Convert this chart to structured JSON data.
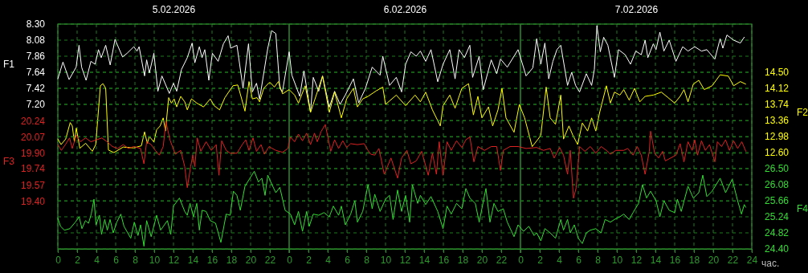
{
  "chart_data": [
    {
      "type": "line",
      "grid": true,
      "xlabel": "час.",
      "ylabel": "F1",
      "y2label": "F2",
      "xlim": [
        "2026-02-05T00:00",
        "2026-02-08T00:00"
      ],
      "xticks": [
        {
          "value": "2026-02-05T00:00",
          "label": "0"
        },
        {
          "value": "2026-02-05T02:00",
          "label": "2"
        },
        {
          "value": "2026-02-05T04:00",
          "label": "4"
        },
        {
          "value": "2026-02-05T06:00",
          "label": "6"
        },
        {
          "value": "2026-02-05T08:00",
          "label": "8"
        },
        {
          "value": "2026-02-05T10:00",
          "label": "10"
        },
        {
          "value": "2026-02-05T12:00",
          "label": "12"
        },
        {
          "value": "2026-02-05T14:00",
          "label": "14"
        },
        {
          "value": "2026-02-05T16:00",
          "label": "16"
        },
        {
          "value": "2026-02-05T18:00",
          "label": "18"
        },
        {
          "value": "2026-02-05T20:00",
          "label": "20"
        },
        {
          "value": "2026-02-05T22:00",
          "label": "22"
        },
        {
          "value": "2026-02-06T00:00",
          "label": "0"
        },
        {
          "value": "2026-02-06T02:00",
          "label": "2"
        },
        {
          "value": "2026-02-06T04:00",
          "label": "4"
        },
        {
          "value": "2026-02-06T06:00",
          "label": "6"
        },
        {
          "value": "2026-02-06T08:00",
          "label": "8"
        },
        {
          "value": "2026-02-06T10:00",
          "label": "10"
        },
        {
          "value": "2026-02-06T12:00",
          "label": "12"
        },
        {
          "value": "2026-02-06T14:00",
          "label": "14"
        },
        {
          "value": "2026-02-06T16:00",
          "label": "16"
        },
        {
          "value": "2026-02-06T18:00",
          "label": "18"
        },
        {
          "value": "2026-02-06T20:00",
          "label": "20"
        },
        {
          "value": "2026-02-06T22:00",
          "label": "22"
        },
        {
          "value": "2026-02-07T00:00",
          "label": "0"
        },
        {
          "value": "2026-02-07T02:00",
          "label": "2"
        },
        {
          "value": "2026-02-07T04:00",
          "label": "4"
        },
        {
          "value": "2026-02-07T06:00",
          "label": "6"
        },
        {
          "value": "2026-02-07T08:00",
          "label": "8"
        },
        {
          "value": "2026-02-07T10:00",
          "label": "10"
        },
        {
          "value": "2026-02-07T12:00",
          "label": "12"
        },
        {
          "value": "2026-02-07T14:00",
          "label": "14"
        },
        {
          "value": "2026-02-07T16:00",
          "label": "16"
        },
        {
          "value": "2026-02-07T18:00",
          "label": "18"
        },
        {
          "value": "2026-02-07T20:00",
          "label": "20"
        },
        {
          "value": "2026-02-07T22:00",
          "label": "22"
        },
        {
          "value": "2026-02-08T00:00",
          "label": "24"
        }
      ],
      "x2lim": [
        "2026-02-05T00:00",
        "2026-02-08T00:00"
      ],
      "x2ticks": [
        {
          "value": "2026-02-05T12:00",
          "label": "5.02.2026"
        },
        {
          "value": "2026-02-06T12:00",
          "label": "6.02.2026"
        },
        {
          "value": "2026-02-07T12:00",
          "label": "7.02.2026"
        }
      ],
      "ylim": [
        5.22,
        8.3
      ],
      "yticks": [
        {
          "value": 8.3,
          "label": "8.30"
        },
        8.08,
        7.86,
        7.64,
        7.42,
        {
          "value": 7.2,
          "label": "7.20"
        }
      ],
      "y2lim": [
        10.32,
        15.64
      ],
      "y2ticks": [
        {
          "value": 14.5,
          "label": "14.50"
        },
        14.12,
        13.74,
        13.36,
        12.98,
        {
          "value": 12.6,
          "label": "12.60"
        }
      ],
      "series": [
        {
          "color": "#ffffff",
          "x": [
            "2026-02-05T00:00",
            "2026-02-05T00:32",
            "2026-02-05T01:10",
            "2026-02-05T01:54",
            "2026-02-05T02:12",
            "2026-02-05T02:28",
            "2026-02-05T02:56",
            "2026-02-05T03:26",
            "2026-02-05T03:52",
            "2026-02-05T04:13",
            "2026-02-05T04:30",
            "2026-02-05T04:58",
            "2026-02-05T05:26",
            "2026-02-05T05:56",
            "2026-02-05T06:43",
            "2026-02-05T07:11",
            "2026-02-05T07:53",
            "2026-02-05T08:13",
            "2026-02-05T08:26",
            "2026-02-05T09:00",
            "2026-02-05T09:13",
            "2026-02-05T09:30",
            "2026-02-05T09:58",
            "2026-02-05T10:23",
            "2026-02-05T10:48",
            "2026-02-05T11:34",
            "2026-02-05T12:00",
            "2026-02-05T12:20",
            "2026-02-05T12:50",
            "2026-02-05T13:26",
            "2026-02-05T13:56",
            "2026-02-05T14:13",
            "2026-02-05T14:41",
            "2026-02-05T14:58",
            "2026-02-05T15:15",
            "2026-02-05T15:40",
            "2026-02-05T16:02",
            "2026-02-05T16:38",
            "2026-02-05T17:11",
            "2026-02-05T17:40",
            "2026-02-05T17:56",
            "2026-02-05T18:35",
            "2026-02-05T19:13",
            "2026-02-05T19:47",
            "2026-02-05T20:11",
            "2026-02-05T20:37",
            "2026-02-05T20:56",
            "2026-02-05T21:47",
            "2026-02-05T22:11",
            "2026-02-05T22:37",
            "2026-02-05T23:02",
            "2026-02-05T23:18",
            "2026-02-06T00:00",
            "2026-02-06T00:17",
            "2026-02-06T01:06",
            "2026-02-06T01:32",
            "2026-02-06T02:13",
            "2026-02-06T02:30",
            "2026-02-06T03:04",
            "2026-02-06T03:28",
            "2026-02-06T04:10",
            "2026-02-06T04:43",
            "2026-02-06T05:17",
            "2026-02-06T05:50",
            "2026-02-06T06:40",
            "2026-02-06T07:13",
            "2026-02-06T07:55",
            "2026-02-06T08:37",
            "2026-02-06T09:26",
            "2026-02-06T09:43",
            "2026-02-06T10:25",
            "2026-02-06T11:07",
            "2026-02-06T11:40",
            "2026-02-06T12:05",
            "2026-02-06T12:38",
            "2026-02-06T13:11",
            "2026-02-06T13:37",
            "2026-02-06T14:10",
            "2026-02-06T14:43",
            "2026-02-06T15:25",
            "2026-02-06T15:58",
            "2026-02-06T16:40",
            "2026-02-06T17:13",
            "2026-02-06T17:38",
            "2026-02-06T18:11",
            "2026-02-06T18:45",
            "2026-02-06T19:02",
            "2026-02-06T19:43",
            "2026-02-06T20:08",
            "2026-02-06T20:58",
            "2026-02-06T21:32",
            "2026-02-06T21:56",
            "2026-02-06T22:38",
            "2026-02-06T23:45",
            "2026-02-07T00:35",
            "2026-02-07T01:17",
            "2026-02-07T01:41",
            "2026-02-07T02:07",
            "2026-02-07T02:32",
            "2026-02-07T02:56",
            "2026-02-07T03:22",
            "2026-02-07T03:47",
            "2026-02-07T04:11",
            "2026-02-07T04:53",
            "2026-02-07T05:19",
            "2026-02-07T05:43",
            "2026-02-07T06:08",
            "2026-02-07T06:50",
            "2026-02-07T07:23",
            "2026-02-07T07:40",
            "2026-02-07T07:56",
            "2026-02-07T08:17",
            "2026-02-07T08:38",
            "2026-02-07T09:04",
            "2026-02-07T09:45",
            "2026-02-07T10:10",
            "2026-02-07T10:52",
            "2026-02-07T11:25",
            "2026-02-07T11:58",
            "2026-02-07T12:32",
            "2026-02-07T12:56",
            "2026-02-07T13:13",
            "2026-02-07T13:47",
            "2026-02-07T14:04",
            "2026-02-07T14:28",
            "2026-02-07T14:53",
            "2026-02-07T15:26",
            "2026-02-07T16:08",
            "2026-02-07T16:50",
            "2026-02-07T17:23",
            "2026-02-07T18:05",
            "2026-02-07T18:47",
            "2026-02-07T19:20",
            "2026-02-07T20:10",
            "2026-02-07T20:43",
            "2026-02-07T21:00",
            "2026-02-07T21:25",
            "2026-02-07T22:07",
            "2026-02-07T22:49",
            "2026-02-07T23:13"
          ],
          "values": [
            7.55,
            7.78,
            7.54,
            7.71,
            8.01,
            7.71,
            7.53,
            7.79,
            7.75,
            7.95,
            7.84,
            8.01,
            7.74,
            8.09,
            7.85,
            7.9,
            7.99,
            7.93,
            7.99,
            7.59,
            7.81,
            7.63,
            7.9,
            7.38,
            7.59,
            7.35,
            7.49,
            7.38,
            7.68,
            7.84,
            8.04,
            7.77,
            7.99,
            7.84,
            7.95,
            7.53,
            7.9,
            7.79,
            8.03,
            8.14,
            7.97,
            8.01,
            7.42,
            8.03,
            7.37,
            7.49,
            7.27,
            7.97,
            8.21,
            8.17,
            7.42,
            7.37,
            7.92,
            7.6,
            7.31,
            7.66,
            7.09,
            7.57,
            7.38,
            7.59,
            7.16,
            7.38,
            7.2,
            7.33,
            7.55,
            7.22,
            7.42,
            7.71,
            7.6,
            7.86,
            7.46,
            7.57,
            7.37,
            7.75,
            7.92,
            7.86,
            7.93,
            7.79,
            7.95,
            7.51,
            7.75,
            7.95,
            7.55,
            7.95,
            7.84,
            8.01,
            7.57,
            7.86,
            7.4,
            7.81,
            7.62,
            7.82,
            7.71,
            7.95,
            7.59,
            7.7,
            8.1,
            7.75,
            8.04,
            7.55,
            7.79,
            7.95,
            8.01,
            7.46,
            7.64,
            7.46,
            7.37,
            7.62,
            7.46,
            7.68,
            8.28,
            7.92,
            8.12,
            8.01,
            7.57,
            7.95,
            7.88,
            7.75,
            7.93,
            7.88,
            8.08,
            7.84,
            8.03,
            7.95,
            8.19,
            7.93,
            8.08,
            7.79,
            7.99,
            7.93,
            7.99,
            7.93,
            7.95,
            7.82,
            8.1,
            7.97,
            8.15,
            8.08,
            8.04,
            8.12
          ]
        },
        {
          "color": "#ffff00",
          "axis": "y2",
          "x": [
            "2026-02-05T00:00",
            "2026-02-05T00:20",
            "2026-02-05T00:49",
            "2026-02-05T01:17",
            "2026-02-05T01:30",
            "2026-02-05T01:43",
            "2026-02-05T01:55",
            "2026-02-05T02:17",
            "2026-02-05T02:53",
            "2026-02-05T03:35",
            "2026-02-05T03:56",
            "2026-02-05T04:25",
            "2026-02-05T04:41",
            "2026-02-05T04:58",
            "2026-02-05T05:15",
            "2026-02-05T05:49",
            "2026-02-05T06:47",
            "2026-02-05T07:53",
            "2026-02-05T08:40",
            "2026-02-05T09:00",
            "2026-02-05T09:17",
            "2026-02-05T09:30",
            "2026-02-05T09:58",
            "2026-02-05T10:15",
            "2026-02-05T10:37",
            "2026-02-05T10:56",
            "2026-02-05T11:10",
            "2026-02-05T11:30",
            "2026-02-05T11:47",
            "2026-02-05T12:04",
            "2026-02-05T12:20",
            "2026-02-05T12:45",
            "2026-02-05T13:10",
            "2026-02-05T13:26",
            "2026-02-05T13:52",
            "2026-02-05T14:25",
            "2026-02-05T15:07",
            "2026-02-05T15:49",
            "2026-02-05T16:13",
            "2026-02-05T16:47",
            "2026-02-05T17:20",
            "2026-02-05T18:10",
            "2026-02-05T18:40",
            "2026-02-05T19:00",
            "2026-02-05T19:25",
            "2026-02-05T19:50",
            "2026-02-05T20:11",
            "2026-02-05T20:40",
            "2026-02-05T20:56",
            "2026-02-05T21:22",
            "2026-02-05T21:55",
            "2026-02-05T22:04",
            "2026-02-05T22:28",
            "2026-02-05T22:53",
            "2026-02-05T23:19",
            "2026-02-06T00:00",
            "2026-02-06T00:34",
            "2026-02-06T00:58",
            "2026-02-06T01:40",
            "2026-02-06T02:13",
            "2026-02-06T02:55",
            "2026-02-06T03:28",
            "2026-02-06T04:10",
            "2026-02-06T04:43",
            "2026-02-06T05:25",
            "2026-02-06T05:58",
            "2026-02-06T06:40",
            "2026-02-06T07:05",
            "2026-02-06T07:38",
            "2026-02-06T08:11",
            "2026-02-06T09:02",
            "2026-02-06T09:43",
            "2026-02-06T10:00",
            "2026-02-06T11:07",
            "2026-02-06T12:05",
            "2026-02-06T13:04",
            "2026-02-06T13:37",
            "2026-02-06T14:10",
            "2026-02-06T14:52",
            "2026-02-06T15:41",
            "2026-02-06T15:58",
            "2026-02-06T16:40",
            "2026-02-06T17:13",
            "2026-02-06T17:55",
            "2026-02-06T18:37",
            "2026-02-06T19:07",
            "2026-02-06T19:35",
            "2026-02-06T20:00",
            "2026-02-06T20:41",
            "2026-02-06T21:07",
            "2026-02-06T21:40",
            "2026-02-06T22:05",
            "2026-02-06T22:30",
            "2026-02-06T23:20",
            "2026-02-06T23:53",
            "2026-02-07T00:26",
            "2026-02-07T01:13",
            "2026-02-07T01:50",
            "2026-02-07T02:07",
            "2026-02-07T02:40",
            "2026-02-07T03:05",
            "2026-02-07T03:38",
            "2026-02-07T04:11",
            "2026-02-07T04:28",
            "2026-02-07T05:02",
            "2026-02-07T05:26",
            "2026-02-07T05:56",
            "2026-02-07T06:25",
            "2026-02-07T06:58",
            "2026-02-07T07:23",
            "2026-02-07T07:49",
            "2026-02-07T08:13",
            "2026-02-07T08:55",
            "2026-02-07T09:20",
            "2026-02-07T09:45",
            "2026-02-07T10:19",
            "2026-02-07T10:43",
            "2026-02-07T11:17",
            "2026-02-07T11:50",
            "2026-02-07T12:23",
            "2026-02-07T12:56",
            "2026-02-07T13:47",
            "2026-02-07T14:37",
            "2026-02-07T15:19",
            "2026-02-07T16:00",
            "2026-02-07T16:34",
            "2026-02-07T16:58",
            "2026-02-07T17:23",
            "2026-02-07T17:56",
            "2026-02-07T18:30",
            "2026-02-07T19:04",
            "2026-02-07T19:53",
            "2026-02-07T20:43",
            "2026-02-07T21:34",
            "2026-02-07T22:07",
            "2026-02-07T22:49",
            "2026-02-07T23:22"
          ],
          "values": [
            12.92,
            12.79,
            12.92,
            13.31,
            13.23,
            12.85,
            13.18,
            12.7,
            12.82,
            12.63,
            12.79,
            14.18,
            14.23,
            14.12,
            12.66,
            12.6,
            12.73,
            12.71,
            12.76,
            13.09,
            12.82,
            12.98,
            12.85,
            13.14,
            13.23,
            13.42,
            13.11,
            13.9,
            13.77,
            13.87,
            13.68,
            13.93,
            13.8,
            13.61,
            13.87,
            13.77,
            13.68,
            13.87,
            13.71,
            13.61,
            13.9,
            14.18,
            14.2,
            13.93,
            13.58,
            14.28,
            13.87,
            13.9,
            13.8,
            14.12,
            14.25,
            14.25,
            14.15,
            14.28,
            13.99,
            14.09,
            13.96,
            13.77,
            14.18,
            13.55,
            14.03,
            14.41,
            13.55,
            14.03,
            13.42,
            13.87,
            14.12,
            13.68,
            13.87,
            13.93,
            14.06,
            14.15,
            13.74,
            13.96,
            13.71,
            13.96,
            13.8,
            14.03,
            13.61,
            13.23,
            13.71,
            13.96,
            13.65,
            14.12,
            14.23,
            13.49,
            13.93,
            13.42,
            13.68,
            13.23,
            13.61,
            14.12,
            13.42,
            13.08,
            13.74,
            13.42,
            12.74,
            12.92,
            13.01,
            14.15,
            13.42,
            13.27,
            13.96,
            12.92,
            13.23,
            13.01,
            12.79,
            13.3,
            13.11,
            13.42,
            13.11,
            13.55,
            14.18,
            13.77,
            14.03,
            13.96,
            14.09,
            13.84,
            14.12,
            13.8,
            13.93,
            13.96,
            14.03,
            13.9,
            13.77,
            13.93,
            14.09,
            13.8,
            14.22,
            14.31,
            14.09,
            14.18,
            14.44,
            14.41,
            14.18,
            14.28,
            14.22
          ]
        }
      ]
    },
    {
      "type": "line",
      "grid": "y",
      "tick_labels": "y",
      "ylabel": "F3",
      "y2label": "F4",
      "xlim": [
        "2026-02-05T00:00",
        "2026-02-08T00:00"
      ],
      "ylim": [
        18.9,
        21.25
      ],
      "yticks": [
        20.24,
        20.07,
        {
          "value": 19.9,
          "label": "19.90"
        },
        19.74,
        19.57,
        {
          "value": 19.4,
          "label": "19.40"
        }
      ],
      "y2lim": [
        24.4,
        30.28
      ],
      "y2ticks": [
        {
          "value": 26.5,
          "label": "26.50"
        },
        26.08,
        25.66,
        25.24,
        24.82,
        {
          "value": 24.4,
          "label": "24.40"
        }
      ],
      "series": [
        {
          "color": "#dd2222",
          "x": [
            "2026-02-05T00:00",
            "2026-02-05T00:22",
            "2026-02-05T00:47",
            "2026-02-05T01:13",
            "2026-02-05T01:30",
            "2026-02-05T01:55",
            "2026-02-05T02:20",
            "2026-02-05T02:53",
            "2026-02-05T03:26",
            "2026-02-05T04:00",
            "2026-02-05T04:34",
            "2026-02-05T05:07",
            "2026-02-05T05:40",
            "2026-02-05T06:13",
            "2026-02-05T06:47",
            "2026-02-05T07:20",
            "2026-02-05T07:53",
            "2026-02-05T08:35",
            "2026-02-05T08:56",
            "2026-02-05T09:13",
            "2026-02-05T09:41",
            "2026-02-05T10:07",
            "2026-02-05T10:32",
            "2026-02-05T10:56",
            "2026-02-05T11:13",
            "2026-02-05T11:38",
            "2026-02-05T12:11",
            "2026-02-05T12:45",
            "2026-02-05T13:10",
            "2026-02-05T13:26",
            "2026-02-05T13:47",
            "2026-02-05T14:00",
            "2026-02-05T14:13",
            "2026-02-05T14:28",
            "2026-02-05T14:50",
            "2026-02-05T15:23",
            "2026-02-05T15:56",
            "2026-02-05T16:26",
            "2026-02-05T16:43",
            "2026-02-05T17:00",
            "2026-02-05T17:28",
            "2026-02-05T17:53",
            "2026-02-05T18:35",
            "2026-02-05T19:08",
            "2026-02-05T19:30",
            "2026-02-05T19:50",
            "2026-02-05T20:15",
            "2026-02-05T20:37",
            "2026-02-05T21:05",
            "2026-02-05T21:26",
            "2026-02-05T21:55",
            "2026-02-05T22:04",
            "2026-02-05T22:37",
            "2026-02-05T23:19",
            "2026-02-05T23:52",
            "2026-02-06T00:08",
            "2026-02-06T00:34",
            "2026-02-06T00:58",
            "2026-02-06T01:23",
            "2026-02-06T01:49",
            "2026-02-06T02:13",
            "2026-02-06T02:38",
            "2026-02-06T02:55",
            "2026-02-06T03:20",
            "2026-02-06T03:45",
            "2026-02-06T04:19",
            "2026-02-06T04:43",
            "2026-02-06T05:08",
            "2026-02-06T05:34",
            "2026-02-06T05:58",
            "2026-02-06T06:23",
            "2026-02-06T07:05",
            "2026-02-06T07:47",
            "2026-02-06T08:11",
            "2026-02-06T08:28",
            "2026-02-06T08:53",
            "2026-02-06T09:19",
            "2026-02-06T09:52",
            "2026-02-06T10:34",
            "2026-02-06T11:15",
            "2026-02-06T11:40",
            "2026-02-06T12:13",
            "2026-02-06T12:38",
            "2026-02-06T13:11",
            "2026-02-06T13:45",
            "2026-02-06T14:26",
            "2026-02-06T14:52",
            "2026-02-06T15:17",
            "2026-02-06T15:34",
            "2026-02-06T15:58",
            "2026-02-06T16:23",
            "2026-02-06T16:49",
            "2026-02-06T17:22",
            "2026-02-06T17:55",
            "2026-02-06T18:20",
            "2026-02-06T18:45",
            "2026-02-06T19:10",
            "2026-02-06T19:35",
            "2026-02-06T20:17",
            "2026-02-06T20:58",
            "2026-02-06T21:32",
            "2026-02-06T21:56",
            "2026-02-06T22:13",
            "2026-02-06T22:55",
            "2026-02-06T23:45",
            "2026-02-07T00:35",
            "2026-02-07T01:41",
            "2026-02-07T02:23",
            "2026-02-07T03:05",
            "2026-02-07T03:30",
            "2026-02-07T04:04",
            "2026-02-07T04:28",
            "2026-02-07T04:53",
            "2026-02-07T05:10",
            "2026-02-07T05:30",
            "2026-02-07T05:47",
            "2026-02-07T06:08",
            "2026-02-07T06:41",
            "2026-02-07T07:15",
            "2026-02-07T07:49",
            "2026-02-07T08:22",
            "2026-02-07T08:55",
            "2026-02-07T09:20",
            "2026-02-07T09:53",
            "2026-02-07T10:43",
            "2026-02-07T11:08",
            "2026-02-07T11:41",
            "2026-02-07T12:07",
            "2026-02-07T12:32",
            "2026-02-07T12:56",
            "2026-02-07T13:22",
            "2026-02-07T13:30",
            "2026-02-07T13:55",
            "2026-02-07T14:20",
            "2026-02-07T14:45",
            "2026-02-07T15:02",
            "2026-02-07T15:35",
            "2026-02-07T16:08",
            "2026-02-07T16:34",
            "2026-02-07T16:58",
            "2026-02-07T17:23",
            "2026-02-07T17:49",
            "2026-02-07T18:05",
            "2026-02-07T18:22",
            "2026-02-07T18:47",
            "2026-02-07T19:11",
            "2026-02-07T19:37",
            "2026-02-07T20:10",
            "2026-02-07T20:26",
            "2026-02-07T20:52",
            "2026-02-07T21:17",
            "2026-02-07T21:41",
            "2026-02-07T22:07",
            "2026-02-07T22:32",
            "2026-02-07T22:58",
            "2026-02-07T23:23"
          ],
          "values": [
            19.99,
            19.93,
            19.99,
            20.06,
            19.95,
            20.09,
            20.02,
            20.06,
            20.02,
            20.04,
            20.06,
            20.02,
            19.97,
            19.95,
            19.99,
            19.95,
            19.97,
            19.95,
            19.79,
            20.02,
            19.99,
            19.93,
            19.88,
            19.97,
            20.23,
            20.04,
            19.89,
            19.93,
            19.76,
            19.54,
            19.76,
            19.88,
            19.76,
            20.06,
            19.92,
            20.02,
            19.93,
            19.99,
            19.67,
            20.03,
            19.93,
            19.9,
            19.9,
            19.99,
            20.04,
            19.93,
            20.06,
            19.92,
            19.99,
            19.89,
            19.97,
            19.96,
            19.93,
            19.91,
            19.95,
            20.07,
            20.02,
            20.1,
            20.03,
            20.11,
            19.99,
            20.11,
            20.02,
            20.13,
            20.2,
            19.92,
            20.04,
            19.95,
            20.03,
            19.96,
            20,
            19.99,
            20,
            19.93,
            19.89,
            19.88,
            19.95,
            19.68,
            19.85,
            19.64,
            19.85,
            19.93,
            19.79,
            19.82,
            19.92,
            19.67,
            19.9,
            19.68,
            20.02,
            19.67,
            20.02,
            19.93,
            20.03,
            19.96,
            20.04,
            20.07,
            19.81,
            19.97,
            19.93,
            19.97,
            19.97,
            19.72,
            19.93,
            19.97,
            19.97,
            19.95,
            19.96,
            19.93,
            19.95,
            19.85,
            19.96,
            19.88,
            19.68,
            19.93,
            19.43,
            19.54,
            19.97,
            19.92,
            19.97,
            19.9,
            19.97,
            19.93,
            19.89,
            19.93,
            19.93,
            19.95,
            19.88,
            19.97,
            19.88,
            19.68,
            19.92,
            20.13,
            19.9,
            19.85,
            19.92,
            19.82,
            19.85,
            19.88,
            20,
            19.81,
            20.02,
            19.93,
            20.04,
            19.88,
            20.03,
            19.93,
            19.99,
            19.81,
            20.02,
            19.97,
            20.04,
            19.93,
            20.03,
            19.95,
            20.02,
            19.92
          ]
        },
        {
          "color": "#33dd33",
          "axis": "y2",
          "x": [
            "2026-02-05T00:00",
            "2026-02-05T00:17",
            "2026-02-05T00:41",
            "2026-02-05T01:15",
            "2026-02-05T01:49",
            "2026-02-05T02:13",
            "2026-02-05T02:30",
            "2026-02-05T02:52",
            "2026-02-05T03:11",
            "2026-02-05T03:28",
            "2026-02-05T03:45",
            "2026-02-05T03:58",
            "2026-02-05T04:19",
            "2026-02-05T04:32",
            "2026-02-05T04:52",
            "2026-02-05T05:08",
            "2026-02-05T05:25",
            "2026-02-05T05:45",
            "2026-02-05T06:07",
            "2026-02-05T06:32",
            "2026-02-05T06:52",
            "2026-02-05T07:34",
            "2026-02-05T07:56",
            "2026-02-05T08:19",
            "2026-02-05T08:35",
            "2026-02-05T08:56",
            "2026-02-05T09:13",
            "2026-02-05T09:41",
            "2026-02-05T10:15",
            "2026-02-05T10:40",
            "2026-02-05T11:22",
            "2026-02-05T11:43",
            "2026-02-05T12:00",
            "2026-02-05T12:37",
            "2026-02-05T13:10",
            "2026-02-05T13:26",
            "2026-02-05T13:43",
            "2026-02-05T14:04",
            "2026-02-05T14:25",
            "2026-02-05T14:41",
            "2026-02-05T14:58",
            "2026-02-05T15:23",
            "2026-02-05T15:49",
            "2026-02-05T16:22",
            "2026-02-05T16:55",
            "2026-02-05T17:28",
            "2026-02-05T17:53",
            "2026-02-05T18:13",
            "2026-02-05T18:35",
            "2026-02-05T18:56",
            "2026-02-05T19:25",
            "2026-02-05T20:23",
            "2026-02-05T20:49",
            "2026-02-05T21:10",
            "2026-02-05T21:30",
            "2026-02-05T21:47",
            "2026-02-05T22:11",
            "2026-02-05T22:37",
            "2026-02-05T23:02",
            "2026-02-05T23:35",
            "2026-02-06T00:08",
            "2026-02-06T00:34",
            "2026-02-06T00:58",
            "2026-02-06T01:23",
            "2026-02-06T01:49",
            "2026-02-06T02:05",
            "2026-02-06T02:30",
            "2026-02-06T03:04",
            "2026-02-06T03:37",
            "2026-02-06T04:10",
            "2026-02-06T04:35",
            "2026-02-06T05:08",
            "2026-02-06T05:25",
            "2026-02-06T05:50",
            "2026-02-06T06:23",
            "2026-02-06T06:49",
            "2026-02-06T07:05",
            "2026-02-06T07:38",
            "2026-02-06T08:11",
            "2026-02-06T08:37",
            "2026-02-06T08:53",
            "2026-02-06T09:26",
            "2026-02-06T10:00",
            "2026-02-06T10:25",
            "2026-02-06T10:47",
            "2026-02-06T11:15",
            "2026-02-06T11:40",
            "2026-02-06T12:05",
            "2026-02-06T12:30",
            "2026-02-06T12:47",
            "2026-02-06T13:20",
            "2026-02-06T13:37",
            "2026-02-06T14:10",
            "2026-02-06T14:43",
            "2026-02-06T15:25",
            "2026-02-06T15:58",
            "2026-02-06T16:23",
            "2026-02-06T16:49",
            "2026-02-06T17:22",
            "2026-02-06T17:55",
            "2026-02-06T18:20",
            "2026-02-06T18:45",
            "2026-02-06T19:19",
            "2026-02-06T19:43",
            "2026-02-06T20:25",
            "2026-02-06T20:50",
            "2026-02-06T21:15",
            "2026-02-06T21:40",
            "2026-02-06T22:13",
            "2026-02-06T22:38",
            "2026-02-06T23:20",
            "2026-02-06T23:45",
            "2026-02-07T00:19",
            "2026-02-07T00:52",
            "2026-02-07T01:25",
            "2026-02-07T01:41",
            "2026-02-07T02:07",
            "2026-02-07T02:32",
            "2026-02-07T03:05",
            "2026-02-07T03:38",
            "2026-02-07T04:11",
            "2026-02-07T04:28",
            "2026-02-07T04:53",
            "2026-02-07T05:10",
            "2026-02-07T05:35",
            "2026-02-07T06:00",
            "2026-02-07T06:25",
            "2026-02-07T06:50",
            "2026-02-07T07:15",
            "2026-02-07T07:49",
            "2026-02-07T08:22",
            "2026-02-07T08:47",
            "2026-02-07T09:20",
            "2026-02-07T09:45",
            "2026-02-07T10:19",
            "2026-02-07T10:43",
            "2026-02-07T11:17",
            "2026-02-07T11:41",
            "2026-02-07T12:15",
            "2026-02-07T12:40",
            "2026-02-07T13:05",
            "2026-02-07T13:30",
            "2026-02-07T14:04",
            "2026-02-07T14:28",
            "2026-02-07T14:53",
            "2026-02-07T15:26",
            "2026-02-07T16:00",
            "2026-02-07T16:17",
            "2026-02-07T16:41",
            "2026-02-07T17:23",
            "2026-02-07T17:56",
            "2026-02-07T18:30",
            "2026-02-07T18:55",
            "2026-02-07T19:20",
            "2026-02-07T19:53",
            "2026-02-07T20:43",
            "2026-02-07T21:17",
            "2026-02-07T21:58",
            "2026-02-07T22:32",
            "2026-02-07T22:56",
            "2026-02-07T23:13",
            "2026-02-07T23:22"
          ],
          "values": [
            25.2,
            24.99,
            24.89,
            24.93,
            25.1,
            25.24,
            24.93,
            25.14,
            25.07,
            25.31,
            25.7,
            25.03,
            25.28,
            24.78,
            25.17,
            24.89,
            25.17,
            24.82,
            25.1,
            25.31,
            24.99,
            24.68,
            25.1,
            24.75,
            25.03,
            24.47,
            25.14,
            24.72,
            25.28,
            24.89,
            25.14,
            24.78,
            25.52,
            25.73,
            25.38,
            25.28,
            25.59,
            25.24,
            25.59,
            24.89,
            25.41,
            25.38,
            25.14,
            25.07,
            24.57,
            25.31,
            25.28,
            25.91,
            25.8,
            25.41,
            26.04,
            26.43,
            26.15,
            26.25,
            25.8,
            26.33,
            26.1,
            25.87,
            26.01,
            25.41,
            25.31,
            25.03,
            25.38,
            24.86,
            25.38,
            24.99,
            25.31,
            25.28,
            25.35,
            25.24,
            25.52,
            25.28,
            25.52,
            25.03,
            25.31,
            25.66,
            25.1,
            25.38,
            26.08,
            25.45,
            25.83,
            25.38,
            25.7,
            25.8,
            25.17,
            25.94,
            25.38,
            25.8,
            25.1,
            26.08,
            25.59,
            25.8,
            25.56,
            25.77,
            25.38,
            24.93,
            25.52,
            25.31,
            25.59,
            25.45,
            25.98,
            25.73,
            25.59,
            25.1,
            25.98,
            25.1,
            25.59,
            25.38,
            25.45,
            25.1,
            24.72,
            25.03,
            24.86,
            24.99,
            24.75,
            24.82,
            24.61,
            24.93,
            24.82,
            24.68,
            25.17,
            24.89,
            25.17,
            24.82,
            25.03,
            24.68,
            24.54,
            24.82,
            24.89,
            24.93,
            24.82,
            25.17,
            25.1,
            25.17,
            25.24,
            25.31,
            25.17,
            25.35,
            25.59,
            26.08,
            25.73,
            25.91,
            25.66,
            25.24,
            25.66,
            25.41,
            25.35,
            25.7,
            25.38,
            26.04,
            25.73,
            25.87,
            26.33,
            25.77,
            25.91,
            26.25,
            25.87,
            26.22,
            25.66,
            25.31,
            25.56,
            25.49
          ]
        }
      ]
    }
  ]
}
